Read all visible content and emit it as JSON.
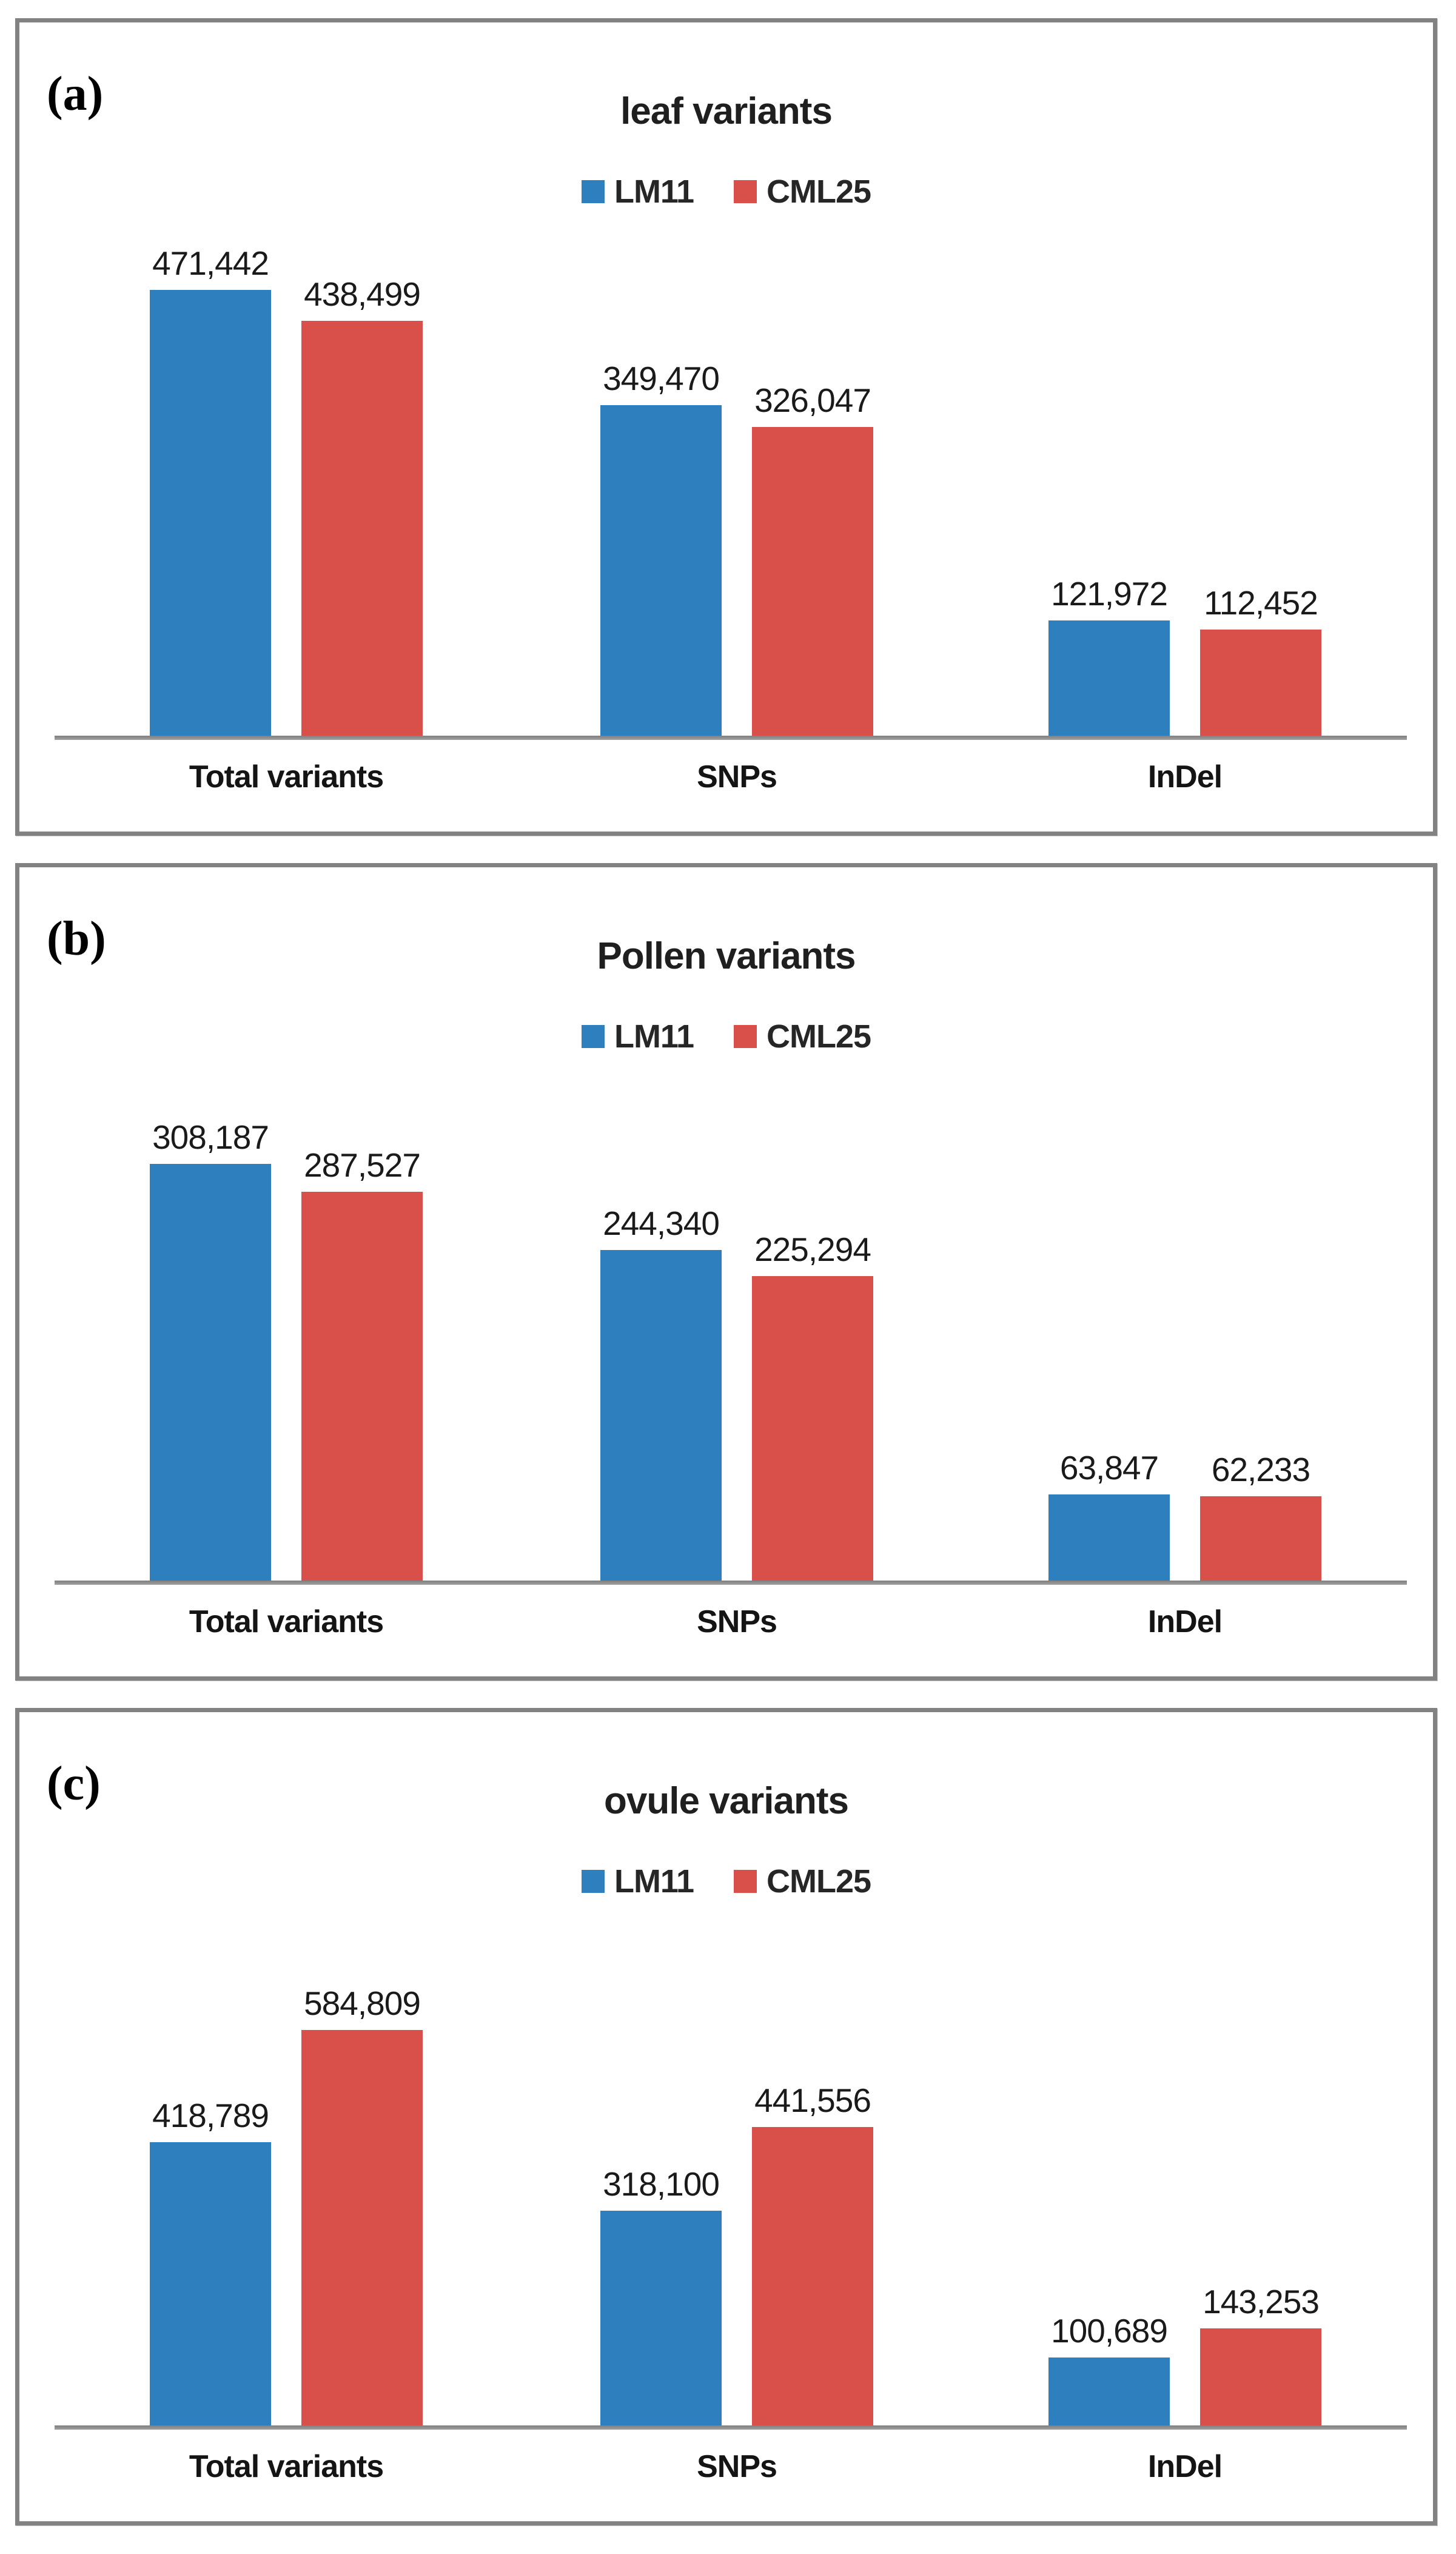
{
  "figure": {
    "background": "#ffffff",
    "panel_border_color": "#828282",
    "axis_color": "#8f8f8f",
    "text_color": "#1f1f1f"
  },
  "chart_data": [
    {
      "type": "bar",
      "panel_label": "(a)",
      "title": "leaf variants",
      "legend_position": "top-center",
      "grid": false,
      "categories": [
        "Total variants",
        "SNPs",
        "InDel"
      ],
      "series": [
        {
          "name": "LM11",
          "color": "#2E7FBE",
          "values": [
            471442,
            349470,
            121972
          ],
          "labels": [
            "471,442",
            "349,470",
            "121,972"
          ]
        },
        {
          "name": "CML25",
          "color": "#D9504A",
          "values": [
            438499,
            326047,
            112452
          ],
          "labels": [
            "438,499",
            "326,047",
            "112,452"
          ]
        }
      ],
      "ylim": [
        0,
        500000
      ]
    },
    {
      "type": "bar",
      "panel_label": "(b)",
      "title": "Pollen variants",
      "legend_position": "top-center",
      "grid": false,
      "categories": [
        "Total variants",
        "SNPs",
        "InDel"
      ],
      "series": [
        {
          "name": "LM11",
          "color": "#2E7FBE",
          "values": [
            308187,
            244340,
            63847
          ],
          "labels": [
            "308,187",
            "244,340",
            "63,847"
          ]
        },
        {
          "name": "CML25",
          "color": "#D9504A",
          "values": [
            287527,
            225294,
            62233
          ],
          "labels": [
            "287,527",
            "225,294",
            "62,233"
          ]
        }
      ],
      "ylim": [
        0,
        350000
      ]
    },
    {
      "type": "bar",
      "panel_label": "(c)",
      "title": "ovule variants",
      "legend_position": "top-center",
      "grid": false,
      "categories": [
        "Total variants",
        "SNPs",
        "InDel"
      ],
      "series": [
        {
          "name": "LM11",
          "color": "#2E7FBE",
          "values": [
            418789,
            318100,
            100689
          ],
          "labels": [
            "418,789",
            "318,100",
            "100,689"
          ]
        },
        {
          "name": "CML25",
          "color": "#D9504A",
          "values": [
            584809,
            441556,
            143253
          ],
          "labels": [
            "584,809",
            "441,556",
            "143,253"
          ]
        }
      ],
      "ylim": [
        0,
        700000
      ]
    }
  ]
}
